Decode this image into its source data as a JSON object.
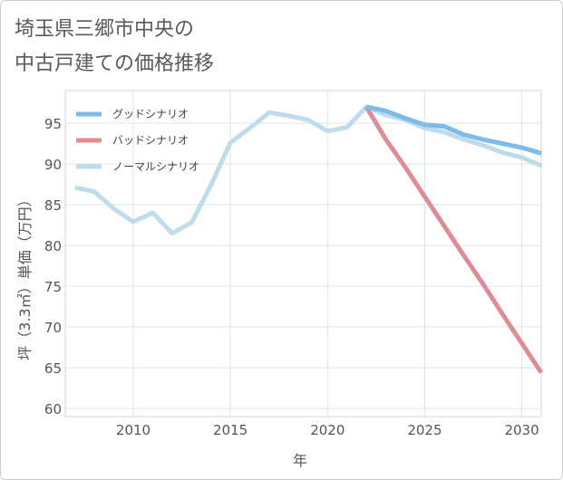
{
  "title": "埼玉県三郷市中央の\n中古戸建ての価格推移",
  "chart_data": {
    "type": "line",
    "title": "埼玉県三郷市中央の中古戸建ての価格推移",
    "xlabel": "年",
    "ylabel": "坪（3.3㎡）単価（万円）",
    "xlim": [
      2006.5,
      2031
    ],
    "ylim": [
      59,
      99
    ],
    "x_ticks": [
      2010,
      2015,
      2020,
      2025,
      2030
    ],
    "y_ticks": [
      60,
      65,
      70,
      75,
      80,
      85,
      90,
      95
    ],
    "legend_position": "top-left",
    "series": [
      {
        "name": "グッドシナリオ",
        "color": "#7bbde8",
        "x": [
          2022,
          2023,
          2024,
          2025,
          2026,
          2027,
          2028,
          2029,
          2030,
          2031
        ],
        "y": [
          97.0,
          96.5,
          95.6,
          94.8,
          94.6,
          93.6,
          93.0,
          92.5,
          92.0,
          91.3
        ]
      },
      {
        "name": "バッドシナリオ",
        "color": "#e08c96",
        "x": [
          2022,
          2023,
          2024,
          2025,
          2026,
          2027,
          2028,
          2029,
          2030,
          2031
        ],
        "y": [
          97.0,
          93.0,
          89.6,
          86.0,
          82.4,
          78.8,
          75.3,
          71.6,
          68.0,
          64.4
        ]
      },
      {
        "name": "ノーマルシナリオ",
        "color": "#bfdcea",
        "x": [
          2007,
          2008,
          2009,
          2010,
          2011,
          2012,
          2013,
          2014,
          2015,
          2016,
          2017,
          2018,
          2019,
          2020,
          2021,
          2022,
          2023,
          2024,
          2025,
          2026,
          2027,
          2028,
          2029,
          2030,
          2031
        ],
        "y": [
          87.1,
          86.6,
          84.5,
          82.9,
          84.0,
          81.5,
          82.8,
          87.4,
          92.6,
          94.4,
          96.3,
          95.9,
          95.4,
          94.0,
          94.5,
          97.0,
          96.0,
          95.4,
          94.4,
          93.9,
          93.0,
          92.3,
          91.4,
          90.8,
          89.8
        ]
      }
    ]
  }
}
